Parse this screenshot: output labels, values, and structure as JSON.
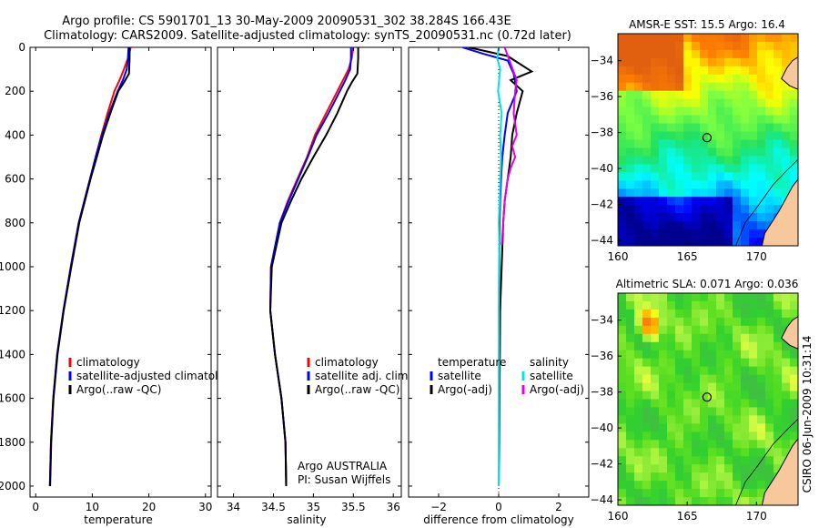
{
  "figure": {
    "title_line1": "Argo profile: CS 5901701_13 30-May-2009 20090531_302 38.284S 166.43E",
    "title_line2": "Climatology: CARS2009. Satellite-adjusted climatology: synTS_20090531.nc (0.72d later)",
    "credit": "CSIRO 06-Jun-2009 10:31:14",
    "colors": {
      "climatology": "#ff0000",
      "satellite": "#0000ff",
      "argo": "#000000",
      "temperature_diff_satellite": "#0000ff",
      "temperature_diff_argo": "#000000",
      "salinity_diff_satellite": "#00e5e5",
      "salinity_diff_argo": "#e600e6",
      "land": "#f7c89b",
      "coast": "#000000"
    }
  },
  "chart_data": [
    {
      "id": "temperature",
      "type": "line",
      "xlabel": "temperature",
      "ylabel": "",
      "xlim": [
        -1,
        31
      ],
      "ylim": [
        2050,
        0
      ],
      "xticks": [
        0,
        10,
        20,
        30
      ],
      "yticks": [
        0,
        200,
        400,
        600,
        800,
        1000,
        1200,
        1400,
        1600,
        1800,
        2000
      ],
      "series": [
        {
          "name": "climatology",
          "color": "#ff0000",
          "x": [
            16.8,
            16.3,
            15.6,
            14.8,
            13.9,
            12.7,
            11.6,
            10.6,
            9.6,
            8.6,
            7.6,
            6.2,
            4.9,
            3.8,
            3.1,
            2.7,
            2.55,
            2.5
          ],
          "y": [
            0,
            50,
            100,
            150,
            200,
            300,
            400,
            500,
            600,
            700,
            800,
            1000,
            1200,
            1400,
            1600,
            1800,
            1950,
            2000
          ]
        },
        {
          "name": "satellite-adjusted climatology",
          "color": "#0000ff",
          "x": [
            16.4,
            16.3,
            16.1,
            15.4,
            14.5,
            13.0,
            11.7,
            10.6,
            9.6,
            8.6,
            7.6,
            6.2,
            4.9,
            3.8,
            3.1,
            2.7,
            2.55,
            2.5
          ],
          "y": [
            0,
            50,
            100,
            150,
            200,
            300,
            400,
            500,
            600,
            700,
            800,
            1000,
            1200,
            1400,
            1600,
            1800,
            1950,
            2000
          ]
        },
        {
          "name": "Argo(..raw -QC)",
          "color": "#000000",
          "x": [
            16.6,
            16.6,
            16.5,
            15.6,
            14.6,
            13.2,
            11.9,
            10.8,
            9.7,
            8.7,
            7.7,
            6.3,
            4.95,
            3.85,
            3.15,
            2.75,
            2.6,
            2.55
          ],
          "y": [
            0,
            50,
            120,
            160,
            200,
            300,
            400,
            500,
            600,
            700,
            800,
            1000,
            1200,
            1400,
            1600,
            1800,
            1950,
            2000
          ]
        }
      ],
      "legend": [
        "climatology",
        "satellite-adjusted climatology",
        "Argo(..raw -QC)"
      ]
    },
    {
      "id": "salinity",
      "type": "line",
      "xlabel": "salinity",
      "xlim": [
        33.8,
        36.1
      ],
      "ylim": [
        2050,
        0
      ],
      "xticks": [
        34,
        34.5,
        35,
        35.5,
        36
      ],
      "series": [
        {
          "name": "climatology",
          "color": "#ff0000",
          "x": [
            35.5,
            35.48,
            35.44,
            35.37,
            35.3,
            35.16,
            35.02,
            34.92,
            34.8,
            34.68,
            34.58,
            34.47,
            34.46,
            34.52,
            34.6,
            34.65,
            34.66
          ],
          "y": [
            0,
            50,
            100,
            150,
            200,
            300,
            400,
            500,
            600,
            700,
            800,
            1000,
            1200,
            1400,
            1600,
            1800,
            2000
          ]
        },
        {
          "name": "satellite adj. clim.",
          "color": "#0000ff",
          "x": [
            35.47,
            35.47,
            35.46,
            35.4,
            35.33,
            35.19,
            35.04,
            34.93,
            34.81,
            34.69,
            34.58,
            34.47,
            34.46,
            34.52,
            34.6,
            34.65,
            34.66
          ],
          "y": [
            0,
            50,
            100,
            150,
            200,
            300,
            400,
            500,
            600,
            700,
            800,
            1000,
            1200,
            1400,
            1600,
            1800,
            2000
          ]
        },
        {
          "name": "Argo(..raw -QC)",
          "color": "#000000",
          "x": [
            35.56,
            35.56,
            35.55,
            35.48,
            35.42,
            35.3,
            35.16,
            35.0,
            34.85,
            34.72,
            34.6,
            34.48,
            34.46,
            34.52,
            34.6,
            34.65,
            34.66
          ],
          "y": [
            0,
            50,
            120,
            160,
            200,
            300,
            400,
            500,
            600,
            700,
            800,
            1000,
            1200,
            1400,
            1600,
            1800,
            2000
          ]
        }
      ],
      "legend": [
        "climatology",
        "satellite adj. clim.",
        "Argo(..raw -QC)"
      ],
      "annotation": [
        "Argo AUSTRALIA",
        "PI: Susan Wijffels"
      ]
    },
    {
      "id": "difference",
      "type": "line",
      "xlabel": "difference from climatology",
      "xlim": [
        -3,
        3
      ],
      "ylim": [
        2050,
        0
      ],
      "xticks": [
        -2,
        0,
        2
      ],
      "series": [
        {
          "name": "temperature satellite",
          "color": "#0000ff",
          "x": [
            -1.2,
            -0.5,
            0.3,
            0.5,
            0.6,
            0.3,
            0.2,
            0.12,
            0.08,
            0.05,
            0.03,
            0.02,
            0.02,
            0.01,
            0.01,
            0.0
          ],
          "y": [
            0,
            30,
            60,
            120,
            200,
            300,
            400,
            500,
            600,
            700,
            800,
            1000,
            1200,
            1400,
            1700,
            2000
          ]
        },
        {
          "name": "temperature Argo(-adj)",
          "color": "#000000",
          "x": [
            -1.0,
            0.3,
            1.1,
            0.4,
            0.8,
            0.6,
            0.45,
            0.4,
            0.3,
            0.2,
            0.15,
            0.1,
            0.05,
            0.04,
            0.02,
            0.0
          ],
          "y": [
            0,
            40,
            110,
            150,
            200,
            300,
            400,
            500,
            600,
            700,
            800,
            1000,
            1200,
            1400,
            1700,
            2000
          ]
        },
        {
          "name": "salinity satellite",
          "color": "#00e5e5",
          "x": [
            0.0,
            -0.05,
            0.05,
            -0.02,
            0.1,
            0.05,
            0.08,
            0.05,
            0.03,
            0.0,
            0.02,
            0.01,
            0.0,
            0.01,
            0.0,
            0.0
          ],
          "y": [
            0,
            50,
            100,
            200,
            300,
            400,
            500,
            600,
            700,
            800,
            900,
            1000,
            1200,
            1500,
            1800,
            2000
          ]
        },
        {
          "name": "salinity Argo(-adj)",
          "color": "#e600e6",
          "x": [
            0.2,
            0.6,
            0.55,
            0.5,
            0.6,
            0.45,
            0.55,
            0.4,
            0.3,
            0.2,
            0.15,
            0.1
          ],
          "y": [
            0,
            150,
            200,
            300,
            400,
            450,
            500,
            550,
            600,
            700,
            800,
            900
          ]
        }
      ],
      "legend_headers": [
        "temperature",
        "salinity"
      ],
      "legend": [
        "satellite",
        "Argo(-adj)",
        "satellite",
        "Argo(-adj)"
      ]
    },
    {
      "id": "sst_map",
      "type": "heatmap",
      "title": "AMSR-E SST: 15.5 Argo: 16.4",
      "xlim": [
        160,
        173
      ],
      "ylim": [
        -44.3,
        -32.5
      ],
      "xticks": [
        160,
        165,
        170
      ],
      "yticks": [
        -34,
        -36,
        -38,
        -40,
        -42,
        -44
      ],
      "colorscale": [
        "#00008f",
        "#0000ff",
        "#0080ff",
        "#00ffff",
        "#20e060",
        "#80ff40",
        "#ffff00",
        "#ff8000",
        "#e06010"
      ],
      "marker": {
        "lon": 166.43,
        "lat": -38.284
      }
    },
    {
      "id": "sla_map",
      "type": "heatmap",
      "title": "Altimetric SLA: 0.071 Argo: 0.036",
      "xlim": [
        160,
        173
      ],
      "ylim": [
        -44.3,
        -32.5
      ],
      "xticks": [
        160,
        165,
        170
      ],
      "yticks": [
        -34,
        -36,
        -38,
        -40,
        -42,
        -44
      ],
      "colorscale": [
        "#40c040",
        "#30d030",
        "#60e020",
        "#a0f040",
        "#e0ff40",
        "#ffff00",
        "#ffb000",
        "#ff8010"
      ],
      "marker": {
        "lon": 166.43,
        "lat": -38.284
      }
    }
  ]
}
